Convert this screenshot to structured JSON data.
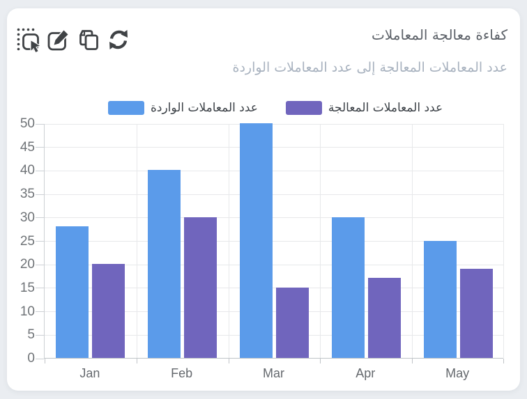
{
  "card": {
    "title": "كفاءة معالجة المعاملات",
    "subtitle": "عدد المعاملات المعالجة إلى عدد المعاملات الواردة"
  },
  "chart_data": {
    "type": "bar",
    "categories": [
      "Jan",
      "Feb",
      "Mar",
      "Apr",
      "May"
    ],
    "series": [
      {
        "name": "عدد المعاملات الواردة",
        "color": "#5b9bea",
        "values": [
          28,
          40,
          50,
          30,
          25
        ]
      },
      {
        "name": "عدد المعاملات المعالجة",
        "color": "#7065bd",
        "values": [
          20,
          30,
          15,
          17,
          19
        ]
      }
    ],
    "ylim": [
      0,
      50
    ],
    "ytick_step": 5,
    "grid": true,
    "legend_position": "top"
  },
  "colors": {
    "incoming_series": "#5b9bea",
    "processed_series": "#7065bd",
    "icon": "#3f4245"
  }
}
